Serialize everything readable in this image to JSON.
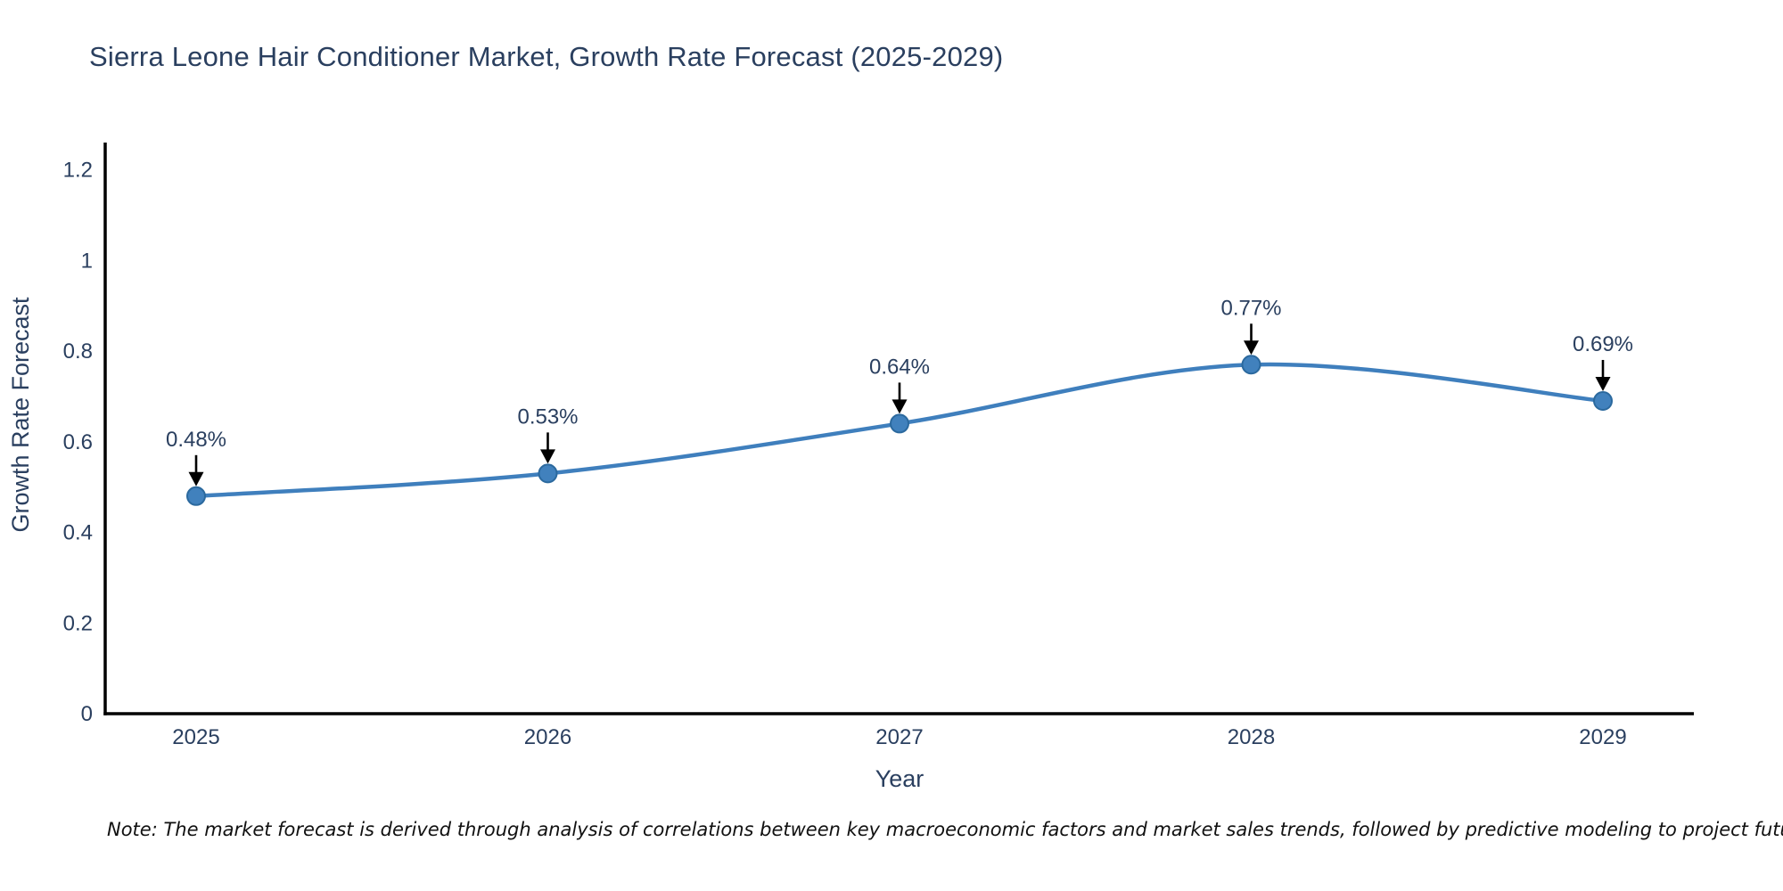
{
  "title": "Sierra Leone Hair Conditioner Market, Growth Rate Forecast (2025-2029)",
  "note": "Note: The market forecast is derived through analysis of correlations between key macroeconomic factors and market sales trends, followed by predictive modeling to project future sales",
  "chart_data": {
    "type": "line",
    "title": "Sierra Leone Hair Conditioner Market, Growth Rate Forecast (2025-2029)",
    "xlabel": "Year",
    "ylabel": "Growth Rate Forecast",
    "categories": [
      "2025",
      "2026",
      "2027",
      "2028",
      "2029"
    ],
    "values": [
      0.48,
      0.53,
      0.64,
      0.77,
      0.69
    ],
    "point_labels": [
      "0.48%",
      "0.53%",
      "0.64%",
      "0.77%",
      "0.69%"
    ],
    "ylim": [
      0,
      1.26
    ],
    "yticks": [
      0,
      0.2,
      0.4,
      0.6,
      0.8,
      1,
      1.2
    ],
    "ytick_labels": [
      "0",
      "0.2",
      "0.4",
      "0.6",
      "0.8",
      "1",
      "1.2"
    ],
    "grid": false,
    "legend": "none",
    "line_shape": "spline",
    "colors": {
      "line": "#3f7fbd",
      "marker_fill": "#4181bd",
      "marker_edge": "#2b699e",
      "axis": "#000000",
      "text": "#2a3f5f",
      "annotation_arrow": "#000000"
    }
  }
}
